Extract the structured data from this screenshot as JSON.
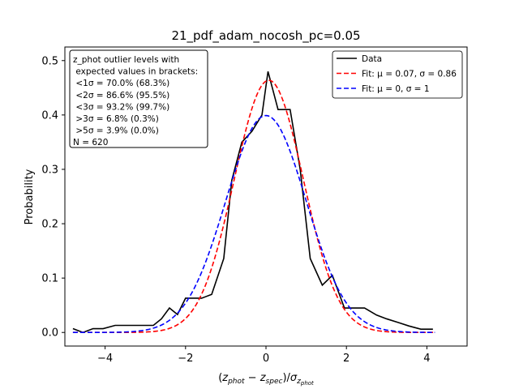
{
  "chart_data": {
    "type": "line",
    "title": "21_pdf_adam_nocosh_pc=0.05",
    "xlabel": "(z_phot − z_spec)/σ_z_phot",
    "ylabel": "Probability",
    "xlim": [
      -5.0,
      5.0
    ],
    "ylim": [
      -0.025,
      0.525
    ],
    "xticks": [
      -4,
      -2,
      0,
      2,
      4
    ],
    "xtick_labels": [
      "−4",
      "−2",
      "0",
      "2",
      "4"
    ],
    "yticks": [
      0.0,
      0.1,
      0.2,
      0.3,
      0.4,
      0.5
    ],
    "ytick_labels": [
      "0.0",
      "0.1",
      "0.2",
      "0.3",
      "0.4",
      "0.5"
    ],
    "grid": false,
    "legend_position": "top-right",
    "series": [
      {
        "name": "Data",
        "style": "solid",
        "color": "#000000",
        "x": [
          -4.8,
          -4.55,
          -4.3,
          -4.05,
          -3.75,
          -3.55,
          -3.3,
          -3.05,
          -2.8,
          -2.6,
          -2.4,
          -2.2,
          -2.0,
          -1.8,
          -1.6,
          -1.35,
          -1.05,
          -0.85,
          -0.6,
          -0.35,
          -0.1,
          0.05,
          0.3,
          0.6,
          0.85,
          1.1,
          1.4,
          1.65,
          1.95,
          2.2,
          2.45,
          2.75,
          3.0,
          3.3,
          3.55,
          3.85,
          4.15
        ],
        "y": [
          0.007,
          0.0,
          0.007,
          0.007,
          0.013,
          0.013,
          0.013,
          0.013,
          0.013,
          0.025,
          0.045,
          0.033,
          0.063,
          0.063,
          0.063,
          0.07,
          0.136,
          0.28,
          0.35,
          0.37,
          0.4,
          0.48,
          0.41,
          0.41,
          0.3,
          0.136,
          0.087,
          0.105,
          0.045,
          0.045,
          0.045,
          0.032,
          0.025,
          0.018,
          0.012,
          0.006,
          0.006
        ]
      },
      {
        "name": "Fit: μ = 0.07, σ = 0.86",
        "style": "dashed",
        "color": "#ff0000",
        "function": "gaussian",
        "mu": 0.07,
        "sigma": 0.86,
        "x_range": [
          -4.8,
          4.2
        ]
      },
      {
        "name": "Fit: μ = 0, σ = 1",
        "style": "dashed",
        "color": "#0000ff",
        "function": "gaussian",
        "mu": 0,
        "sigma": 1,
        "x_range": [
          -4.8,
          4.2
        ]
      }
    ],
    "annotation": {
      "lines": [
        "z_phot outlier levels with",
        " expected values in brackets:",
        " <1σ = 70.0% (68.3%)",
        " <2σ = 86.6% (95.5%)",
        " <3σ = 93.2% (99.7%)",
        " >3σ = 6.8% (0.3%)",
        " >5σ = 3.9% (0.0%)",
        "N = 620"
      ]
    }
  }
}
